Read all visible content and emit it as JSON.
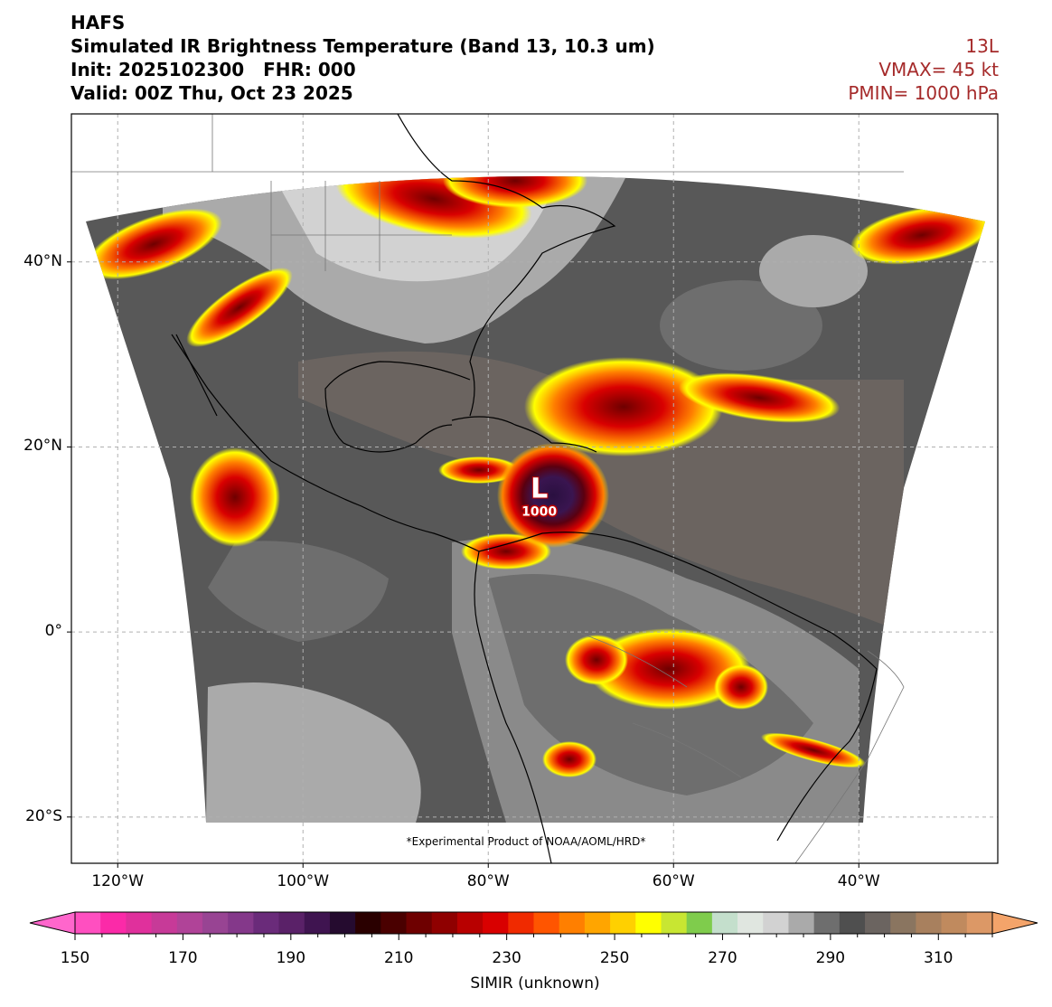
{
  "header": {
    "model": "HAFS",
    "product": "Simulated IR Brightness Temperature (Band 13, 10.3 um)",
    "init_line": "Init: 2025102300   FHR: 000",
    "valid_line": "Valid: 00Z Thu, Oct 23 2025"
  },
  "storm": {
    "id": "13L",
    "vmax": "VMAX= 45 kt",
    "pmin": "PMIN= 1000 hPa",
    "center_symbol": "L",
    "center_pressure": "1000",
    "center_lat": 14.5,
    "center_lon": -74.5
  },
  "map": {
    "lat_range": [
      -25,
      56
    ],
    "lon_range": [
      -125,
      -25
    ],
    "lat_ticks": [
      {
        "value": 40,
        "label": "40°N"
      },
      {
        "value": 20,
        "label": "20°N"
      },
      {
        "value": 0,
        "label": "0°"
      },
      {
        "value": -20,
        "label": "20°S"
      }
    ],
    "lon_ticks": [
      {
        "value": -120,
        "label": "120°W"
      },
      {
        "value": -100,
        "label": "100°W"
      },
      {
        "value": -80,
        "label": "80°W"
      },
      {
        "value": -60,
        "label": "60°W"
      },
      {
        "value": -40,
        "label": "40°W"
      }
    ],
    "gridlines": true,
    "footnote": "*Experimental Product of NOAA/AOML/HRD*"
  },
  "colorbar": {
    "label": "SIMIR (unknown)",
    "min": 150,
    "max": 320,
    "step": 5,
    "tick_labels": [
      "150",
      "170",
      "190",
      "210",
      "230",
      "250",
      "270",
      "290",
      "310"
    ],
    "tick_values": [
      150,
      170,
      190,
      210,
      230,
      250,
      270,
      290,
      310
    ],
    "under_color": "#ff66cc",
    "over_color": "#f4a46a",
    "colors": [
      "#ff4fc0",
      "#fb2aa8",
      "#e0309c",
      "#c73a98",
      "#b04398",
      "#984493",
      "#84388a",
      "#6a2b7a",
      "#5a2168",
      "#3f1450",
      "#250b2f",
      "#2a0000",
      "#4a0000",
      "#6e0000",
      "#8f0000",
      "#b80000",
      "#d90000",
      "#f02a00",
      "#ff5500",
      "#ff7f00",
      "#ffa500",
      "#ffd000",
      "#ffff00",
      "#c8e632",
      "#7fcc4c",
      "#c4dfcc",
      "#e0e6e0",
      "#d2d2d2",
      "#aaaaaa",
      "#6e6e6e",
      "#4f4f4f",
      "#6b6460",
      "#8a7560",
      "#a8805e",
      "#c08a5e",
      "#dc9866"
    ]
  }
}
